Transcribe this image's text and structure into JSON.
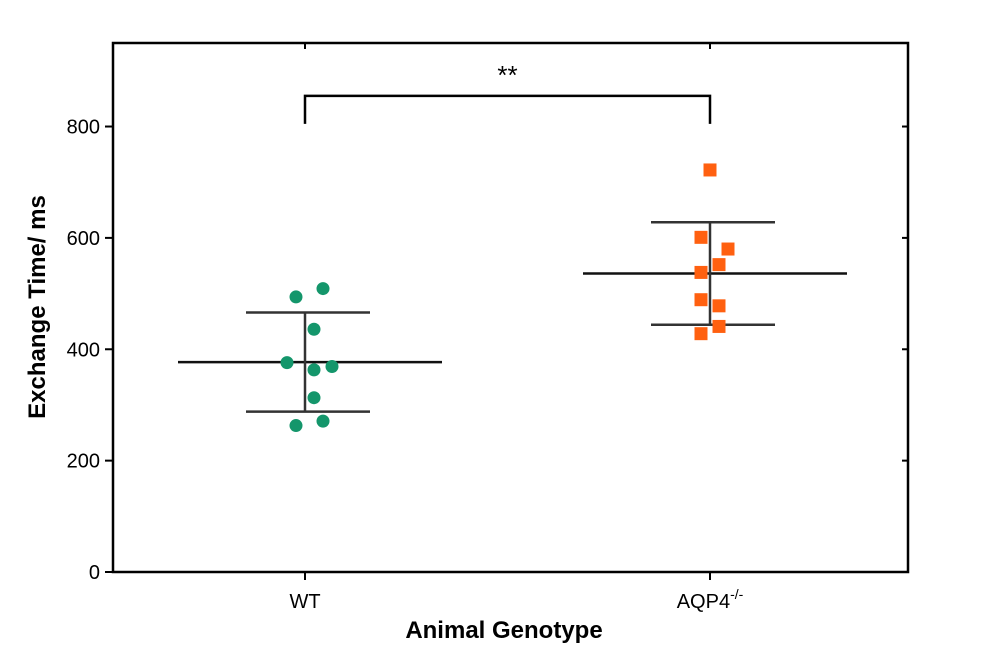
{
  "chart_data": {
    "type": "scatter",
    "subtype": "dot-plot-with-mean-and-sd",
    "title": "",
    "xlabel": "Animal Genotype",
    "ylabel": "Exchange Time/ ms",
    "ylim": [
      0,
      950
    ],
    "yticks": [
      0,
      200,
      400,
      600,
      800
    ],
    "grid": false,
    "categories": [
      "WT",
      "AQP4-/-"
    ],
    "category_labels": [
      {
        "base": "WT",
        "sup": ""
      },
      {
        "base": "AQP4",
        "sup": "-/-"
      }
    ],
    "series": [
      {
        "name": "WT",
        "marker": "circle",
        "color": "#14966b",
        "values": [
          509,
          494,
          436,
          376,
          369,
          363,
          313,
          271,
          263
        ],
        "jitter": [
          0.04,
          -0.02,
          0.02,
          -0.04,
          0.06,
          0.02,
          0.02,
          0.04,
          -0.02
        ],
        "mean": 377,
        "sd_upper": 466,
        "sd_lower": 288
      },
      {
        "name": "AQP4-/-",
        "marker": "square",
        "color": "#ff6010",
        "values": [
          722,
          601,
          580,
          552,
          538,
          489,
          478,
          441,
          428
        ],
        "jitter": [
          0.0,
          -0.02,
          0.04,
          0.02,
          -0.02,
          -0.02,
          0.02,
          0.02,
          -0.02
        ],
        "mean": 536,
        "sd_upper": 628,
        "sd_lower": 444
      }
    ],
    "significance": {
      "between": [
        0,
        1
      ],
      "label": "**",
      "y": 855
    }
  }
}
